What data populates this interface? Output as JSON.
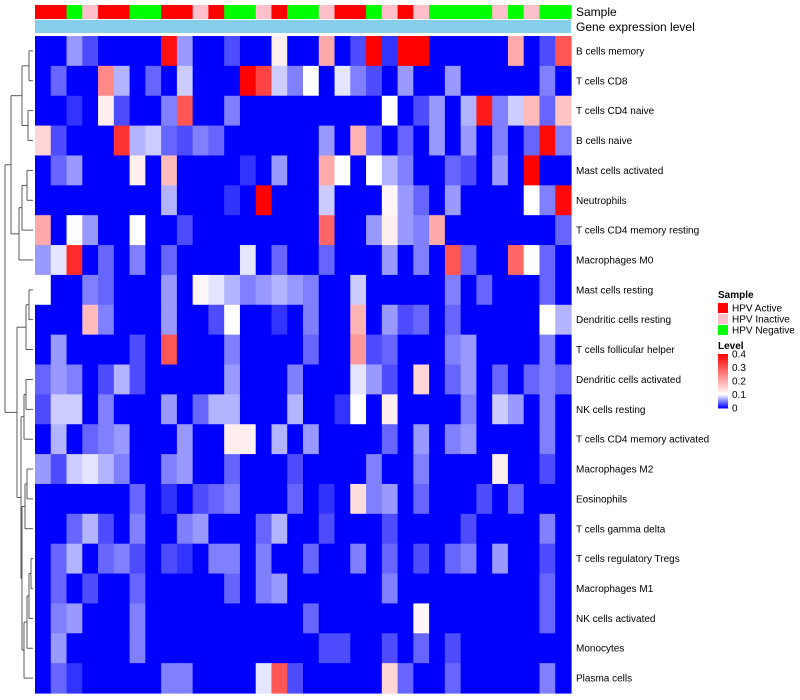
{
  "chart_data": {
    "type": "heatmap",
    "annotation_rows": [
      {
        "label": "Sample"
      },
      {
        "label": "Gene expression level"
      }
    ],
    "rows": [
      "B cells memory",
      "T cells CD8",
      "T cells CD4 naive",
      "B cells naive",
      "Mast cells activated",
      "Neutrophils",
      "T cells CD4 memory resting",
      "Macrophages M0",
      "Mast cells resting",
      "Dendritic cells resting",
      "T cells follicular helper",
      "Dendritic cells activated",
      "NK cells resting",
      "T cells CD4 memory activated",
      "Macrophages M2",
      "Eosinophils",
      "T cells gamma delta",
      "T cells regulatory  Tregs",
      "Macrophages M1",
      "NK cells activated",
      "Monocytes",
      "Plasma cells"
    ],
    "sample_groups": [
      "A",
      "A",
      "N",
      "I",
      "A",
      "A",
      "N",
      "N",
      "A",
      "A",
      "I",
      "A",
      "N",
      "N",
      "I",
      "A",
      "N",
      "N",
      "I",
      "A",
      "A",
      "N",
      "I",
      "A",
      "I",
      "N",
      "N",
      "N",
      "N",
      "I",
      "N",
      "I",
      "N",
      "N"
    ],
    "values": [
      [
        0,
        0,
        0.06,
        0.03,
        0,
        0,
        0,
        0,
        0.38,
        0.06,
        0,
        0,
        0.03,
        0,
        0,
        0.12,
        0,
        0,
        0.2,
        0,
        0.03,
        0.4,
        0.02,
        0.4,
        0.4,
        0,
        0,
        0,
        0,
        0,
        0.2,
        0,
        0.03,
        0.3
      ],
      [
        0,
        0.04,
        0,
        0,
        0.24,
        0.07,
        0,
        0.04,
        0,
        0.08,
        0,
        0,
        0,
        0.4,
        0.32,
        0.08,
        0.05,
        0.1,
        0,
        0.09,
        0.05,
        0.03,
        0,
        0.06,
        0,
        0,
        0.06,
        0,
        0,
        0,
        0,
        0,
        0.05,
        0
      ],
      [
        0,
        0,
        0.02,
        0,
        0.12,
        0.03,
        0,
        0,
        0.05,
        0.3,
        0,
        0,
        0.05,
        0,
        0,
        0,
        0,
        0,
        0,
        0,
        0,
        0,
        0.1,
        0,
        0.03,
        0.06,
        0,
        0.07,
        0.37,
        0.05,
        0.08,
        0.18,
        0.04,
        0.17
      ],
      [
        0.15,
        0.03,
        0,
        0,
        0,
        0.34,
        0.07,
        0.08,
        0.04,
        0.03,
        0.05,
        0.04,
        0,
        0,
        0,
        0,
        0,
        0,
        0.06,
        0,
        0.19,
        0.04,
        0,
        0.04,
        0,
        0.06,
        0,
        0.06,
        0,
        0.05,
        0,
        0.04,
        0.39,
        0.05
      ],
      [
        0,
        0.04,
        0.06,
        0,
        0,
        0,
        0.12,
        0,
        0.18,
        0,
        0,
        0,
        0,
        0.02,
        0,
        0.06,
        0,
        0,
        0.2,
        0.1,
        0,
        0.1,
        0.07,
        0.05,
        0,
        0,
        0.04,
        0.03,
        0,
        0.06,
        0,
        0.4,
        0,
        0
      ],
      [
        0,
        0,
        0,
        0,
        0,
        0,
        0,
        0,
        0.07,
        0,
        0,
        0,
        0.02,
        0,
        0.4,
        0,
        0,
        0,
        0.08,
        0,
        0,
        0,
        0.11,
        0.06,
        0.04,
        0,
        0.06,
        0,
        0,
        0,
        0,
        0.1,
        0.05,
        0.39
      ],
      [
        0.2,
        0,
        0.1,
        0.06,
        0,
        0,
        0.1,
        0,
        0,
        0.03,
        0,
        0,
        0,
        0,
        0,
        0,
        0,
        0,
        0.28,
        0,
        0,
        0.06,
        0.12,
        0.06,
        0.05,
        0.2,
        0,
        0,
        0,
        0,
        0,
        0,
        0,
        0.04
      ],
      [
        0.06,
        0.09,
        0.35,
        0,
        0.04,
        0,
        0.05,
        0,
        0.04,
        0,
        0,
        0,
        0,
        0.09,
        0,
        0.04,
        0,
        0,
        0.04,
        0,
        0,
        0,
        0.06,
        0,
        0.05,
        0,
        0.3,
        0.04,
        0,
        0,
        0.28,
        0.1,
        0.04,
        0
      ],
      [
        0.1,
        0,
        0,
        0.05,
        0.04,
        0,
        0,
        0,
        0.06,
        0,
        0.11,
        0.09,
        0.07,
        0.05,
        0.06,
        0.07,
        0.06,
        0.05,
        0,
        0,
        0.08,
        0,
        0,
        0,
        0,
        0,
        0.05,
        0,
        0.04,
        0,
        0,
        0,
        0.04,
        0
      ],
      [
        0,
        0,
        0,
        0.18,
        0.05,
        0,
        0,
        0,
        0.06,
        0,
        0,
        0.03,
        0.1,
        0,
        0,
        0.02,
        0,
        0.05,
        0,
        0,
        0.19,
        0,
        0.06,
        0.03,
        0.04,
        0,
        0.04,
        0,
        0,
        0,
        0,
        0,
        0.1,
        0.07
      ],
      [
        0,
        0.06,
        0,
        0,
        0,
        0,
        0.03,
        0,
        0.3,
        0,
        0,
        0,
        0.05,
        0,
        0,
        0,
        0,
        0.04,
        0,
        0,
        0.22,
        0.03,
        0.04,
        0,
        0,
        0,
        0.05,
        0.06,
        0,
        0,
        0,
        0,
        0.05,
        0
      ],
      [
        0.04,
        0.06,
        0.05,
        0,
        0.03,
        0.07,
        0.03,
        0,
        0,
        0,
        0,
        0,
        0.06,
        0,
        0,
        0,
        0.05,
        0,
        0,
        0,
        0.09,
        0.06,
        0.03,
        0,
        0.15,
        0,
        0.04,
        0.06,
        0,
        0.04,
        0,
        0.04,
        0.05,
        0.04
      ],
      [
        0.03,
        0.08,
        0.08,
        0,
        0.05,
        0,
        0,
        0,
        0.06,
        0,
        0.04,
        0.07,
        0.07,
        0,
        0,
        0,
        0.07,
        0,
        0,
        0.02,
        0.1,
        0,
        0.12,
        0,
        0,
        0,
        0,
        0.05,
        0,
        0.08,
        0.06,
        0,
        0.05,
        0
      ],
      [
        0,
        0.07,
        0,
        0.04,
        0.05,
        0.06,
        0,
        0,
        0,
        0.06,
        0,
        0,
        0.12,
        0.12,
        0,
        0.07,
        0,
        0.06,
        0,
        0,
        0,
        0,
        0.04,
        0,
        0.06,
        0,
        0.05,
        0.06,
        0,
        0,
        0,
        0,
        0.05,
        0
      ],
      [
        0.06,
        0.03,
        0.08,
        0.09,
        0.07,
        0.05,
        0,
        0,
        0.05,
        0.06,
        0,
        0,
        0.04,
        0,
        0,
        0,
        0.03,
        0,
        0,
        0,
        0,
        0.05,
        0,
        0,
        0.05,
        0,
        0,
        0,
        0,
        0.12,
        0,
        0,
        0.03,
        0
      ],
      [
        0,
        0,
        0,
        0,
        0,
        0,
        0.04,
        0,
        0.02,
        0,
        0.03,
        0.04,
        0.05,
        0,
        0,
        0,
        0.04,
        0,
        0.02,
        0,
        0.14,
        0.05,
        0.06,
        0,
        0.04,
        0,
        0,
        0,
        0.03,
        0,
        0.04,
        0,
        0,
        0
      ],
      [
        0,
        0,
        0.04,
        0.07,
        0.03,
        0,
        0.05,
        0,
        0,
        0.05,
        0.06,
        0,
        0,
        0,
        0.04,
        0.07,
        0,
        0,
        0.03,
        0,
        0,
        0,
        0.03,
        0,
        0,
        0,
        0,
        0.03,
        0,
        0,
        0,
        0,
        0.05,
        0
      ],
      [
        0,
        0.04,
        0.07,
        0,
        0.04,
        0.05,
        0.03,
        0,
        0.03,
        0.02,
        0,
        0.05,
        0.05,
        0,
        0.05,
        0,
        0,
        0.04,
        0,
        0,
        0.05,
        0,
        0.04,
        0,
        0.03,
        0,
        0.04,
        0.05,
        0,
        0.06,
        0,
        0,
        0.03,
        0
      ],
      [
        0,
        0.04,
        0,
        0.03,
        0,
        0,
        0.04,
        0,
        0,
        0,
        0,
        0,
        0.04,
        0,
        0.05,
        0.06,
        0,
        0,
        0,
        0,
        0,
        0,
        0.05,
        0,
        0,
        0,
        0,
        0,
        0,
        0,
        0,
        0,
        0.04,
        0
      ],
      [
        0,
        0.05,
        0.06,
        0,
        0,
        0,
        0.05,
        0,
        0,
        0,
        0,
        0,
        0,
        0,
        0,
        0,
        0,
        0.04,
        0,
        0,
        0,
        0,
        0,
        0,
        0.11,
        0,
        0,
        0,
        0,
        0,
        0,
        0,
        0.04,
        0
      ],
      [
        0,
        0.06,
        0,
        0,
        0,
        0,
        0.05,
        0,
        0,
        0,
        0,
        0,
        0,
        0,
        0,
        0,
        0,
        0,
        0.03,
        0.03,
        0,
        0,
        0.03,
        0,
        0.04,
        0,
        0.03,
        0,
        0,
        0,
        0,
        0,
        0,
        0
      ],
      [
        0,
        0.04,
        0.02,
        0,
        0,
        0,
        0,
        0,
        0.05,
        0.05,
        0,
        0,
        0,
        0,
        0.09,
        0.3,
        0.03,
        0,
        0,
        0,
        0,
        0,
        0.15,
        0.04,
        0,
        0,
        0.04,
        0,
        0,
        0,
        0,
        0,
        0.05,
        0
      ]
    ],
    "color_scale": {
      "min": 0,
      "mid": 0.1,
      "max": 0.4,
      "low_color": "#0000FF",
      "mid_color": "#FFFFFF",
      "high_color": "#FF0000"
    },
    "legend": {
      "placement": "right",
      "sample": {
        "title": "Sample",
        "items": [
          {
            "key": "A",
            "label": "HPV Active",
            "color": "#FF0000"
          },
          {
            "key": "I",
            "label": "HPV Inactive",
            "color": "#FFC0CB"
          },
          {
            "key": "N",
            "label": "HPV Negative",
            "color": "#00FF00"
          }
        ]
      },
      "level": {
        "title": "Level",
        "ticks": [
          0.4,
          0.3,
          0.2,
          0.1,
          0
        ]
      }
    },
    "gene_expression_color": "#87CEEB",
    "dendrogram": "left"
  }
}
